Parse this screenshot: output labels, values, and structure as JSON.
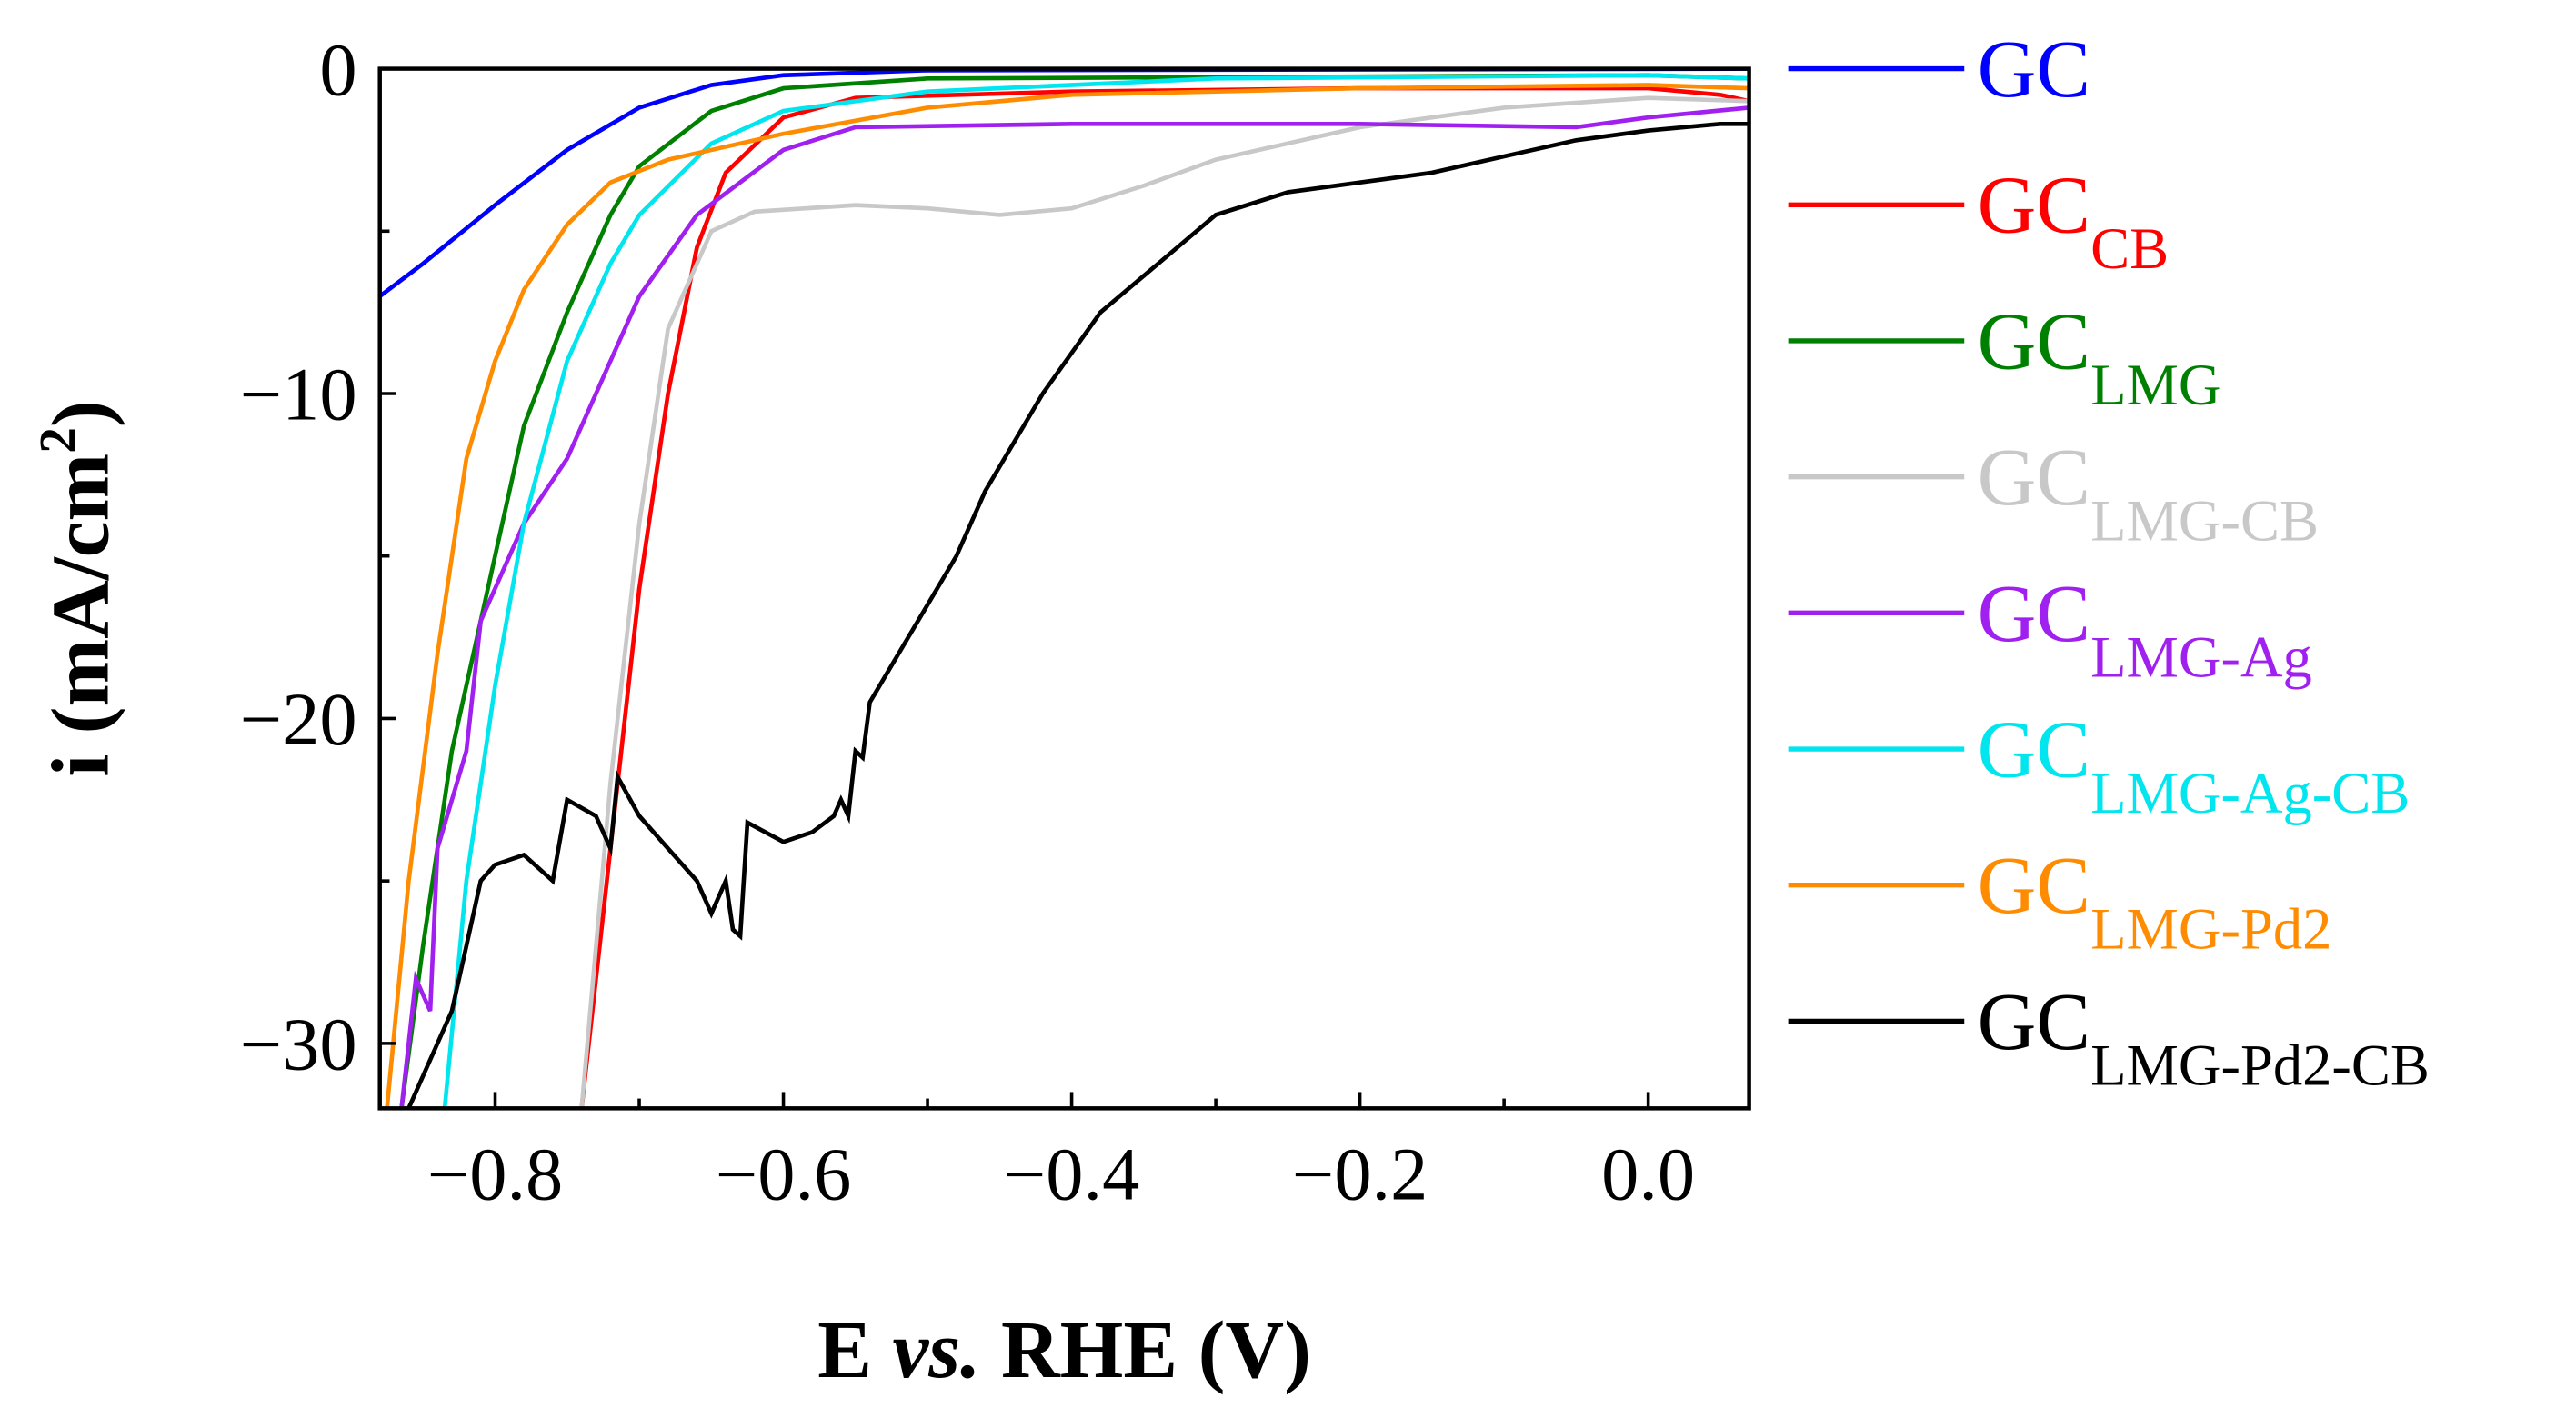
{
  "chart_data": {
    "type": "line",
    "xlabel": {
      "main": "E ",
      "italic": "vs.",
      "rest": " RHE (V)"
    },
    "ylabel": {
      "main": "i (mA/cm",
      "sup": "2",
      "end": ")"
    },
    "xlim": [
      -0.88,
      0.07
    ],
    "ylim": [
      -32,
      0
    ],
    "xticks": [
      -0.8,
      -0.6,
      -0.4,
      -0.2,
      0.0
    ],
    "xtick_labels": [
      "−0.8",
      "−0.6",
      "−0.4",
      "−0.2",
      "0.0"
    ],
    "yticks": [
      0,
      -10,
      -20,
      -30
    ],
    "ytick_labels": [
      "0",
      "−10",
      "−20",
      "−30"
    ],
    "grid": false,
    "legend_position": "right",
    "series": [
      {
        "name": "GC",
        "base": "GC",
        "sub": "",
        "color": "#0000ff",
        "points": [
          [
            -0.88,
            -7
          ],
          [
            -0.85,
            -6
          ],
          [
            -0.8,
            -4.2
          ],
          [
            -0.75,
            -2.5
          ],
          [
            -0.7,
            -1.2
          ],
          [
            -0.65,
            -0.5
          ],
          [
            -0.6,
            -0.2
          ],
          [
            -0.5,
            -0.05
          ],
          [
            0.07,
            0
          ]
        ]
      },
      {
        "name": "GC_CB",
        "base": "GC",
        "sub": "CB",
        "color": "#ff0000",
        "points": [
          [
            -0.74,
            -32
          ],
          [
            -0.72,
            -24
          ],
          [
            -0.7,
            -16
          ],
          [
            -0.68,
            -10
          ],
          [
            -0.66,
            -5.5
          ],
          [
            -0.64,
            -3.2
          ],
          [
            -0.6,
            -1.5
          ],
          [
            -0.55,
            -0.9
          ],
          [
            -0.4,
            -0.7
          ],
          [
            -0.2,
            -0.6
          ],
          [
            0,
            -0.6
          ],
          [
            0.05,
            -0.8
          ],
          [
            0.07,
            -1.0
          ]
        ]
      },
      {
        "name": "GC_LMG",
        "base": "GC",
        "sub": "LMG",
        "color": "#008000",
        "points": [
          [
            -0.865,
            -32
          ],
          [
            -0.85,
            -27
          ],
          [
            -0.83,
            -21
          ],
          [
            -0.8,
            -15
          ],
          [
            -0.78,
            -11
          ],
          [
            -0.75,
            -7.5
          ],
          [
            -0.72,
            -4.5
          ],
          [
            -0.7,
            -3
          ],
          [
            -0.65,
            -1.3
          ],
          [
            -0.6,
            -0.6
          ],
          [
            -0.5,
            -0.3
          ],
          [
            0,
            -0.2
          ],
          [
            0.07,
            -0.3
          ]
        ]
      },
      {
        "name": "GC_LMG-CB",
        "base": "GC",
        "sub": "LMG-CB",
        "color": "#c8c8c8",
        "points": [
          [
            -0.74,
            -32
          ],
          [
            -0.72,
            -22
          ],
          [
            -0.7,
            -14
          ],
          [
            -0.68,
            -8
          ],
          [
            -0.65,
            -5
          ],
          [
            -0.62,
            -4.4
          ],
          [
            -0.55,
            -4.2
          ],
          [
            -0.5,
            -4.3
          ],
          [
            -0.45,
            -4.5
          ],
          [
            -0.4,
            -4.3
          ],
          [
            -0.35,
            -3.6
          ],
          [
            -0.3,
            -2.8
          ],
          [
            -0.2,
            -1.8
          ],
          [
            -0.1,
            -1.2
          ],
          [
            0,
            -0.9
          ],
          [
            0.07,
            -1.0
          ]
        ]
      },
      {
        "name": "GC_LMG-Ag",
        "base": "GC",
        "sub": "LMG-Ag",
        "color": "#a020f0",
        "points": [
          [
            -0.865,
            -32
          ],
          [
            -0.855,
            -28
          ],
          [
            -0.845,
            -29
          ],
          [
            -0.84,
            -24
          ],
          [
            -0.82,
            -21
          ],
          [
            -0.81,
            -17
          ],
          [
            -0.78,
            -14
          ],
          [
            -0.75,
            -12
          ],
          [
            -0.72,
            -9
          ],
          [
            -0.7,
            -7
          ],
          [
            -0.66,
            -4.5
          ],
          [
            -0.6,
            -2.5
          ],
          [
            -0.55,
            -1.8
          ],
          [
            -0.4,
            -1.7
          ],
          [
            -0.2,
            -1.7
          ],
          [
            -0.05,
            -1.8
          ],
          [
            0,
            -1.5
          ],
          [
            0.07,
            -1.2
          ]
        ]
      },
      {
        "name": "GC_LMG-Ag-CB",
        "base": "GC",
        "sub": "LMG-Ag-CB",
        "color": "#00e5ee",
        "points": [
          [
            -0.835,
            -32
          ],
          [
            -0.82,
            -25
          ],
          [
            -0.8,
            -19
          ],
          [
            -0.78,
            -14
          ],
          [
            -0.75,
            -9
          ],
          [
            -0.72,
            -6
          ],
          [
            -0.7,
            -4.5
          ],
          [
            -0.65,
            -2.3
          ],
          [
            -0.6,
            -1.3
          ],
          [
            -0.5,
            -0.7
          ],
          [
            -0.3,
            -0.3
          ],
          [
            0,
            -0.2
          ],
          [
            0.07,
            -0.3
          ]
        ]
      },
      {
        "name": "GC_LMG-Pd2",
        "base": "GC",
        "sub": "LMG-Pd2",
        "color": "#ff8c00",
        "points": [
          [
            -0.875,
            -32
          ],
          [
            -0.86,
            -25
          ],
          [
            -0.84,
            -18
          ],
          [
            -0.82,
            -12
          ],
          [
            -0.8,
            -9
          ],
          [
            -0.78,
            -6.8
          ],
          [
            -0.75,
            -4.8
          ],
          [
            -0.72,
            -3.5
          ],
          [
            -0.68,
            -2.8
          ],
          [
            -0.6,
            -2.0
          ],
          [
            -0.5,
            -1.2
          ],
          [
            -0.4,
            -0.8
          ],
          [
            -0.2,
            -0.6
          ],
          [
            0,
            -0.5
          ],
          [
            0.07,
            -0.6
          ]
        ]
      },
      {
        "name": "GC_LMG-Pd2-CB",
        "base": "GC",
        "sub": "LMG-Pd2-CB",
        "color": "#000000",
        "points": [
          [
            -0.86,
            -32
          ],
          [
            -0.83,
            -29
          ],
          [
            -0.82,
            -27
          ],
          [
            -0.81,
            -25
          ],
          [
            -0.8,
            -24.5
          ],
          [
            -0.78,
            -24.2
          ],
          [
            -0.76,
            -25
          ],
          [
            -0.75,
            -22.5
          ],
          [
            -0.73,
            -23
          ],
          [
            -0.72,
            -24
          ],
          [
            -0.715,
            -21.8
          ],
          [
            -0.7,
            -23
          ],
          [
            -0.68,
            -24
          ],
          [
            -0.66,
            -25
          ],
          [
            -0.65,
            -26
          ],
          [
            -0.64,
            -25
          ],
          [
            -0.635,
            -26.5
          ],
          [
            -0.63,
            -26.7
          ],
          [
            -0.625,
            -23.2
          ],
          [
            -0.6,
            -23.8
          ],
          [
            -0.58,
            -23.5
          ],
          [
            -0.565,
            -23
          ],
          [
            -0.56,
            -22.5
          ],
          [
            -0.555,
            -23
          ],
          [
            -0.55,
            -21
          ],
          [
            -0.545,
            -21.2
          ],
          [
            -0.54,
            -19.5
          ],
          [
            -0.52,
            -18
          ],
          [
            -0.5,
            -16.5
          ],
          [
            -0.48,
            -15
          ],
          [
            -0.46,
            -13
          ],
          [
            -0.42,
            -10
          ],
          [
            -0.38,
            -7.5
          ],
          [
            -0.34,
            -6
          ],
          [
            -0.3,
            -4.5
          ],
          [
            -0.25,
            -3.8
          ],
          [
            -0.2,
            -3.5
          ],
          [
            -0.15,
            -3.2
          ],
          [
            -0.1,
            -2.7
          ],
          [
            -0.05,
            -2.2
          ],
          [
            0,
            -1.9
          ],
          [
            0.05,
            -1.7
          ],
          [
            0.07,
            -1.7
          ]
        ]
      }
    ]
  }
}
